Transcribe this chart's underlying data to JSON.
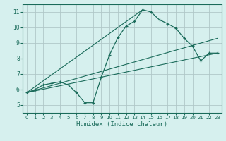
{
  "xlabel": "Humidex (Indice chaleur)",
  "bg_color": "#d6f0ee",
  "grid_color": "#b0c8c8",
  "line_color": "#1a6b5a",
  "xlim": [
    -0.5,
    23.5
  ],
  "ylim": [
    4.5,
    11.5
  ],
  "xticks": [
    0,
    1,
    2,
    3,
    4,
    5,
    6,
    7,
    8,
    9,
    10,
    11,
    12,
    13,
    14,
    15,
    16,
    17,
    18,
    19,
    20,
    21,
    22,
    23
  ],
  "yticks": [
    5,
    6,
    7,
    8,
    9,
    10,
    11
  ],
  "curve1_x": [
    0,
    1,
    2,
    3,
    4,
    5,
    6,
    7,
    8,
    9,
    10,
    11,
    12,
    13,
    14,
    15,
    16,
    17,
    18,
    19,
    20,
    21,
    22,
    23
  ],
  "curve1_y": [
    5.8,
    6.0,
    6.3,
    6.4,
    6.5,
    6.3,
    5.8,
    5.15,
    5.15,
    6.8,
    8.25,
    9.35,
    10.1,
    10.4,
    11.15,
    11.0,
    10.5,
    10.25,
    9.95,
    9.3,
    8.8,
    7.85,
    8.35,
    8.35
  ],
  "line1_x": [
    0,
    23
  ],
  "line1_y": [
    5.8,
    8.35
  ],
  "line2_x": [
    0,
    23
  ],
  "line2_y": [
    5.8,
    9.3
  ],
  "line3_x": [
    0,
    14
  ],
  "line3_y": [
    5.8,
    11.15
  ]
}
